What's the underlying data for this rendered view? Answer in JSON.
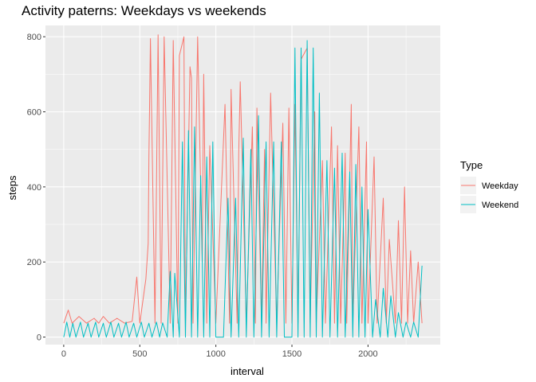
{
  "chart_data": {
    "type": "line",
    "title": "Activity paterns: Weekdays vs weekends",
    "xlabel": "interval",
    "ylabel": "steps",
    "xlim": [
      -120,
      2475
    ],
    "ylim": [
      -20,
      830
    ],
    "x_ticks": [
      0,
      500,
      1000,
      1500,
      2000
    ],
    "y_ticks": [
      0,
      200,
      400,
      600,
      800
    ],
    "grid": true,
    "legend": {
      "title": "Type",
      "position": "right",
      "entries": [
        "Weekday",
        "Weekend"
      ]
    },
    "series": [
      {
        "name": "Weekday",
        "color": "#F8766D",
        "x": [
          0,
          30,
          55,
          100,
          150,
          200,
          230,
          260,
          300,
          350,
          400,
          450,
          480,
          500,
          540,
          555,
          560,
          570,
          600,
          620,
          640,
          660,
          700,
          720,
          750,
          760,
          790,
          800,
          830,
          840,
          850,
          880,
          910,
          920,
          940,
          960,
          1000,
          1060,
          1090,
          1100,
          1140,
          1150,
          1160,
          1200,
          1240,
          1260,
          1270,
          1300,
          1320,
          1330,
          1360,
          1400,
          1440,
          1460,
          1480,
          1500,
          1520,
          1540,
          1560,
          1600,
          1620,
          1650,
          1660,
          1700,
          1720,
          1760,
          1780,
          1800,
          1820,
          1850,
          1860,
          1890,
          1900,
          1940,
          1960,
          1990,
          2000,
          2040,
          2060,
          2100,
          2120,
          2140,
          2180,
          2200,
          2220,
          2240,
          2260,
          2280,
          2300,
          2330,
          2355
        ],
        "y": [
          37,
          72,
          37,
          55,
          37,
          50,
          37,
          55,
          37,
          50,
          37,
          42,
          160,
          37,
          155,
          250,
          480,
          795,
          37,
          805,
          37,
          800,
          37,
          790,
          37,
          750,
          800,
          37,
          720,
          690,
          37,
          800,
          200,
          700,
          37,
          510,
          37,
          620,
          37,
          660,
          37,
          490,
          680,
          37,
          560,
          37,
          610,
          37,
          500,
          37,
          650,
          37,
          570,
          37,
          610,
          37,
          620,
          37,
          740,
          770,
          37,
          600,
          37,
          470,
          37,
          560,
          37,
          510,
          37,
          490,
          37,
          620,
          37,
          560,
          37,
          520,
          37,
          480,
          37,
          370,
          37,
          260,
          37,
          310,
          37,
          400,
          37,
          230,
          37,
          200,
          37
        ]
      },
      {
        "name": "Weekend",
        "color": "#00BFC4",
        "x": [
          0,
          20,
          40,
          60,
          80,
          110,
          130,
          160,
          180,
          210,
          230,
          260,
          280,
          310,
          330,
          360,
          380,
          410,
          430,
          460,
          480,
          510,
          530,
          560,
          580,
          610,
          630,
          650,
          680,
          700,
          720,
          730,
          760,
          780,
          800,
          820,
          840,
          860,
          880,
          900,
          920,
          940,
          960,
          980,
          1000,
          1050,
          1080,
          1100,
          1130,
          1150,
          1180,
          1200,
          1230,
          1250,
          1280,
          1300,
          1330,
          1350,
          1380,
          1400,
          1430,
          1450,
          1500,
          1520,
          1540,
          1560,
          1580,
          1600,
          1620,
          1640,
          1660,
          1680,
          1700,
          1730,
          1750,
          1780,
          1800,
          1830,
          1850,
          1880,
          1900,
          1920,
          1940,
          1960,
          1980,
          2000,
          2030,
          2050,
          2080,
          2100,
          2130,
          2150,
          2180,
          2200,
          2230,
          2250,
          2280,
          2300,
          2330,
          2355
        ],
        "y": [
          0,
          40,
          0,
          37,
          0,
          40,
          0,
          37,
          0,
          40,
          0,
          37,
          0,
          40,
          0,
          37,
          0,
          40,
          0,
          37,
          0,
          40,
          0,
          37,
          0,
          40,
          0,
          38,
          0,
          175,
          0,
          170,
          0,
          520,
          0,
          550,
          0,
          560,
          0,
          430,
          0,
          480,
          0,
          520,
          0,
          0,
          370,
          0,
          370,
          0,
          530,
          0,
          500,
          0,
          590,
          0,
          520,
          0,
          520,
          0,
          520,
          0,
          0,
          770,
          0,
          770,
          0,
          790,
          0,
          770,
          0,
          650,
          0,
          470,
          0,
          450,
          0,
          490,
          0,
          440,
          0,
          460,
          0,
          400,
          0,
          340,
          0,
          100,
          0,
          130,
          0,
          110,
          0,
          65,
          0,
          40,
          0,
          40,
          0,
          190
        ]
      }
    ]
  }
}
